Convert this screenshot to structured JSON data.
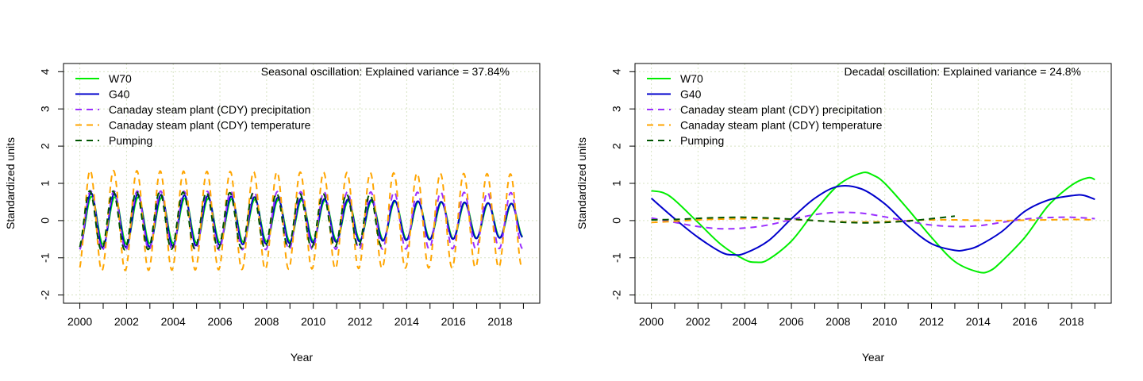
{
  "chart_data": [
    {
      "type": "line",
      "title": "Seasonal oscillation: Explained variance = 37.84%",
      "xlabel": "Year",
      "ylabel": "Standardized units",
      "xlim": [
        2000,
        2019
      ],
      "ylim": [
        -2,
        4
      ],
      "x_ticks": [
        "2000",
        "2002",
        "2004",
        "2006",
        "2008",
        "2010",
        "2012",
        "2014",
        "2016",
        "2018"
      ],
      "y_ticks": [
        "-2",
        "-1",
        "0",
        "1",
        "2",
        "3",
        "4"
      ],
      "grid": true,
      "legend_position": "top-left",
      "series": [
        {
          "name": "W70",
          "color": "#00ee00",
          "dash": "solid",
          "period_years": 1,
          "amplitude_start": 0.65,
          "amplitude_end": 0.45,
          "end_year": 2018.95
        },
        {
          "name": "G40",
          "color": "#0000cc",
          "dash": "solid",
          "period_years": 1,
          "amplitude_start": 0.75,
          "amplitude_end": 0.45,
          "end_year": 2018.95
        },
        {
          "name": "Canaday steam plant (CDY) precipitation",
          "color": "#9b30ff",
          "dash": "dashed",
          "period_years": 1,
          "amplitude_start": 0.8,
          "amplitude_end": 0.75,
          "end_year": 2018.95
        },
        {
          "name": "Canaday steam plant (CDY) temperature",
          "color": "#ffa500",
          "dash": "dashed",
          "period_years": 1,
          "amplitude_start": 1.35,
          "amplitude_end": 1.25,
          "end_year": 2018.95
        },
        {
          "name": "Pumping",
          "color": "#005500",
          "dash": "dashed",
          "period_years": 1,
          "amplitude_start": 0.8,
          "amplitude_end": 0.65,
          "end_year": 2013.0
        }
      ]
    },
    {
      "type": "line",
      "title": "Decadal oscillation: Explained variance = 24.8%",
      "xlabel": "Year",
      "ylabel": "Standardized units",
      "xlim": [
        2000,
        2019
      ],
      "ylim": [
        -2,
        4
      ],
      "x_ticks": [
        "2000",
        "2002",
        "2004",
        "2006",
        "2008",
        "2010",
        "2012",
        "2014",
        "2016",
        "2018"
      ],
      "y_ticks": [
        "-2",
        "-1",
        "0",
        "1",
        "2",
        "3",
        "4"
      ],
      "grid": true,
      "legend_position": "top-left",
      "series": [
        {
          "name": "W70",
          "color": "#00ee00",
          "dash": "solid",
          "x": [
            2000,
            2000.5,
            2001,
            2002,
            2003,
            2004,
            2004.5,
            2005,
            2006,
            2007,
            2008,
            2009,
            2009.5,
            2010,
            2011,
            2012,
            2013,
            2014,
            2014.5,
            2015,
            2016,
            2017,
            2018,
            2018.7,
            2019
          ],
          "y": [
            0.8,
            0.75,
            0.55,
            -0.05,
            -0.65,
            -1.05,
            -1.12,
            -1.05,
            -0.55,
            0.25,
            0.95,
            1.28,
            1.22,
            1.0,
            0.3,
            -0.45,
            -1.1,
            -1.38,
            -1.35,
            -1.1,
            -0.45,
            0.4,
            0.95,
            1.15,
            1.1
          ]
        },
        {
          "name": "G40",
          "color": "#0000cc",
          "dash": "solid",
          "x": [
            2000,
            2001,
            2002,
            2003,
            2003.5,
            2004,
            2005,
            2006,
            2007,
            2008,
            2009,
            2010,
            2011,
            2012,
            2013,
            2013.5,
            2014,
            2015,
            2016,
            2017,
            2018,
            2018.5,
            2019
          ],
          "y": [
            0.6,
            0.05,
            -0.45,
            -0.85,
            -0.92,
            -0.88,
            -0.55,
            0.05,
            0.6,
            0.92,
            0.85,
            0.45,
            -0.15,
            -0.62,
            -0.8,
            -0.78,
            -0.68,
            -0.3,
            0.25,
            0.55,
            0.67,
            0.68,
            0.57
          ]
        },
        {
          "name": "Canaday steam plant (CDY) precipitation",
          "color": "#9b30ff",
          "dash": "dashed",
          "x": [
            2000,
            2001,
            2002,
            2003,
            2004,
            2005,
            2006,
            2007,
            2008,
            2009,
            2010,
            2011,
            2012,
            2013,
            2014,
            2015,
            2016,
            2017,
            2018,
            2019
          ],
          "y": [
            0.07,
            -0.05,
            -0.16,
            -0.22,
            -0.2,
            -0.12,
            0.03,
            0.16,
            0.22,
            0.2,
            0.1,
            -0.02,
            -0.12,
            -0.16,
            -0.14,
            -0.05,
            0.04,
            0.08,
            0.09,
            0.05
          ]
        },
        {
          "name": "Canaday steam plant (CDY) temperature",
          "color": "#ffa500",
          "dash": "dashed",
          "x": [
            2000,
            2001,
            2002,
            2003,
            2004,
            2005,
            2006,
            2007,
            2008,
            2009,
            2010,
            2011,
            2012,
            2013,
            2014,
            2015,
            2016,
            2017,
            2018,
            2019
          ],
          "y": [
            -0.05,
            -0.02,
            0.02,
            0.04,
            0.05,
            0.05,
            0.03,
            0.0,
            -0.03,
            -0.04,
            -0.03,
            0.0,
            0.02,
            0.02,
            0.01,
            0.0,
            0.01,
            0.02,
            0.03,
            0.02
          ]
        },
        {
          "name": "Pumping",
          "color": "#005500",
          "dash": "dashed",
          "x": [
            2000,
            2001,
            2002,
            2003,
            2004,
            2005,
            2006,
            2007,
            2008,
            2009,
            2010,
            2011,
            2012,
            2013
          ],
          "y": [
            0.02,
            0.03,
            0.06,
            0.08,
            0.09,
            0.07,
            0.04,
            0.0,
            -0.04,
            -0.06,
            -0.05,
            -0.01,
            0.05,
            0.12
          ]
        }
      ]
    }
  ]
}
